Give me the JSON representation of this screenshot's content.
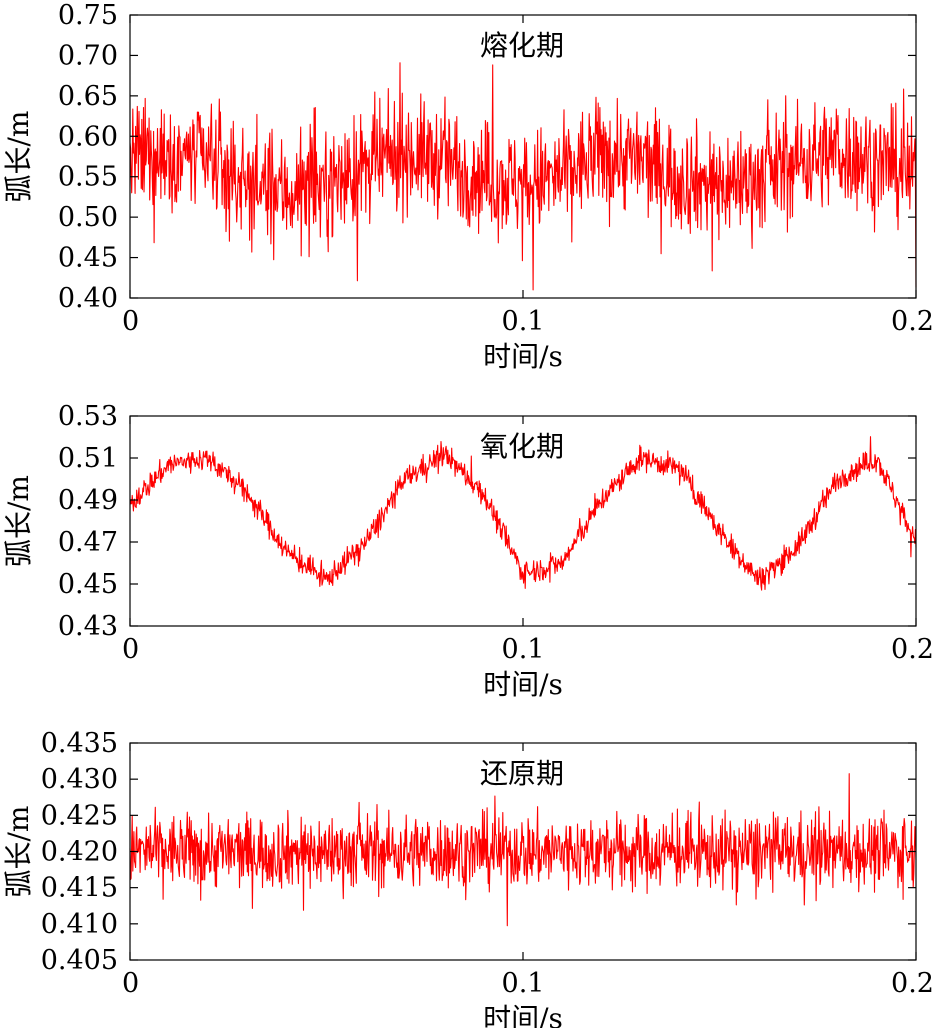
{
  "chart_data": [
    {
      "type": "line",
      "title": "熔化期",
      "xlabel": "时间/s",
      "ylabel": "弧长/m",
      "xlim": [
        0,
        0.2
      ],
      "ylim": [
        0.4,
        0.75
      ],
      "x_ticks": [
        "0",
        "0.1",
        "0.2"
      ],
      "y_ticks": [
        "0.40",
        "0.45",
        "0.50",
        "0.55",
        "0.60",
        "0.65",
        "0.70",
        "0.75"
      ],
      "grid": false,
      "legend": "none",
      "series": [
        {
          "color": "#ff0000",
          "x": [
            0,
            0.01,
            0.02,
            0.03,
            0.04,
            0.05,
            0.06,
            0.07,
            0.08,
            0.09,
            0.1,
            0.11,
            0.12,
            0.13,
            0.14,
            0.15,
            0.16,
            0.17,
            0.18,
            0.19,
            0.2
          ],
          "mean": [
            0.57,
            0.58,
            0.57,
            0.54,
            0.53,
            0.54,
            0.56,
            0.58,
            0.57,
            0.55,
            0.54,
            0.55,
            0.58,
            0.57,
            0.55,
            0.54,
            0.55,
            0.57,
            0.58,
            0.57,
            0.55
          ],
          "amplitude": 0.06,
          "min": 0.41,
          "max": 0.73
        }
      ]
    },
    {
      "type": "line",
      "title": "氧化期",
      "xlabel": "时间/s",
      "ylabel": "弧长/m",
      "xlim": [
        0,
        0.2
      ],
      "ylim": [
        0.43,
        0.53
      ],
      "x_ticks": [
        "0",
        "0.1",
        "0.2"
      ],
      "y_ticks": [
        "0.43",
        "0.45",
        "0.47",
        "0.49",
        "0.51",
        "0.53"
      ],
      "grid": false,
      "legend": "none",
      "series": [
        {
          "color": "#ff0000",
          "x": [
            0,
            0.01,
            0.02,
            0.03,
            0.04,
            0.05,
            0.06,
            0.07,
            0.08,
            0.09,
            0.1,
            0.11,
            0.12,
            0.13,
            0.14,
            0.15,
            0.16,
            0.17,
            0.18,
            0.19,
            0.2
          ],
          "mean": [
            0.488,
            0.507,
            0.51,
            0.493,
            0.465,
            0.452,
            0.47,
            0.5,
            0.512,
            0.493,
            0.455,
            0.46,
            0.49,
            0.51,
            0.505,
            0.475,
            0.452,
            0.468,
            0.5,
            0.51,
            0.47
          ],
          "amplitude": 0.005,
          "min": 0.437,
          "max": 0.524
        }
      ]
    },
    {
      "type": "line",
      "title": "还原期",
      "xlabel": "时间/s",
      "ylabel": "弧长/m",
      "xlim": [
        0,
        0.2
      ],
      "ylim": [
        0.405,
        0.435
      ],
      "x_ticks": [
        "0",
        "0.1",
        "0.2"
      ],
      "y_ticks": [
        "0.405",
        "0.410",
        "0.415",
        "0.420",
        "0.425",
        "0.430",
        "0.435"
      ],
      "grid": false,
      "legend": "none",
      "series": [
        {
          "color": "#ff0000",
          "x": [
            0,
            0.02,
            0.04,
            0.06,
            0.08,
            0.1,
            0.12,
            0.14,
            0.16,
            0.18,
            0.2
          ],
          "mean": [
            0.42,
            0.42,
            0.42,
            0.42,
            0.42,
            0.42,
            0.42,
            0.42,
            0.42,
            0.42,
            0.42
          ],
          "amplitude": 0.0045,
          "min": 0.409,
          "max": 0.4325
        }
      ]
    }
  ]
}
